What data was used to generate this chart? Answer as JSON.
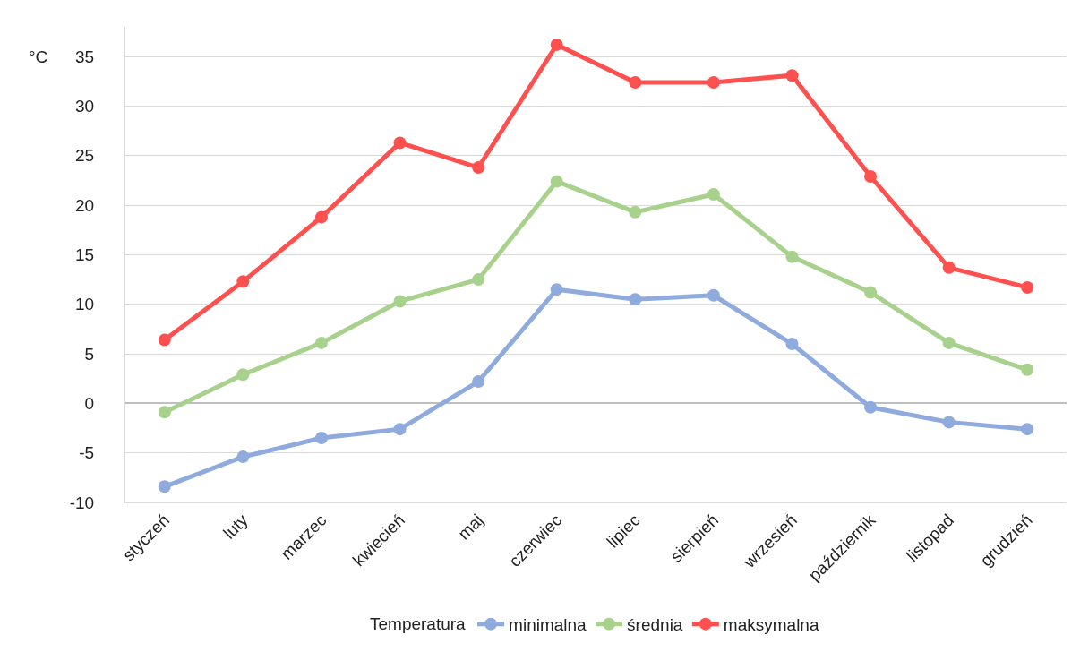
{
  "chart_data": {
    "type": "line",
    "ylabel": "°C",
    "legend_title": "Temperatura",
    "categories": [
      "styczeń",
      "luty",
      "marzec",
      "kwiecień",
      "maj",
      "czerwiec",
      "lipiec",
      "sierpień",
      "wrzesień",
      "październik",
      "listopad",
      "grudzień"
    ],
    "series": [
      {
        "name": "minimalna",
        "color": "#8faadc",
        "values": [
          -8.4,
          -5.4,
          -3.5,
          -2.6,
          2.2,
          11.5,
          10.5,
          10.9,
          6.0,
          -0.4,
          -1.9,
          -2.6
        ]
      },
      {
        "name": "średnia",
        "color": "#a9d18e",
        "values": [
          -0.9,
          2.9,
          6.1,
          10.3,
          12.5,
          22.4,
          19.3,
          21.1,
          14.8,
          11.2,
          6.1,
          3.4
        ]
      },
      {
        "name": "maksymalna",
        "color": "#ff5050",
        "values": [
          6.4,
          12.3,
          18.8,
          26.3,
          23.8,
          36.2,
          32.4,
          32.4,
          33.1,
          22.9,
          13.7,
          11.7
        ]
      }
    ],
    "ylim": [
      -10,
      38
    ],
    "yticks": [
      -10,
      -5,
      0,
      5,
      10,
      15,
      20,
      25,
      30,
      35
    ],
    "grid": "y",
    "legend": "bottom",
    "marker": "circle",
    "line_style": "solid"
  }
}
